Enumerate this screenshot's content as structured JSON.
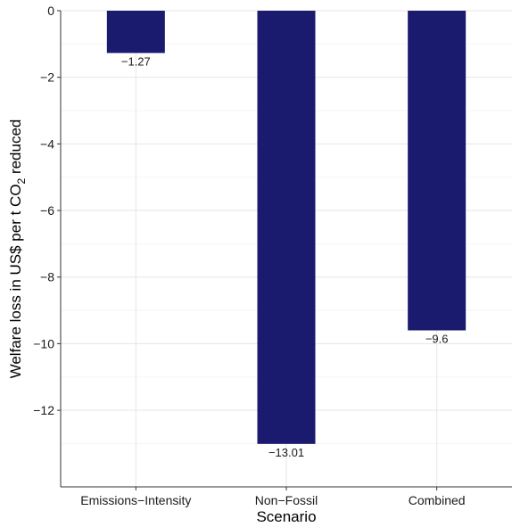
{
  "chart_data": {
    "type": "bar",
    "categories": [
      "Emissions−Intensity",
      "Non−Fossil",
      "Combined"
    ],
    "values": [
      -1.27,
      -13.01,
      -9.6
    ],
    "value_labels": [
      "−1.27",
      "−13.01",
      "−9.6"
    ],
    "xlabel": "Scenario",
    "ylabel": {
      "prefix": "Welfare loss in US$ per t CO",
      "subscript": "2",
      "suffix": " reduced"
    },
    "yticks": [
      0,
      -2,
      -4,
      -6,
      -8,
      -10,
      -12
    ],
    "ytick_labels": [
      "0",
      "−2",
      "−4",
      "−6",
      "−8",
      "−10",
      "−12"
    ],
    "ylim": [
      -14.3,
      0
    ],
    "grid": true,
    "bar_color": "#1a1a6e"
  }
}
